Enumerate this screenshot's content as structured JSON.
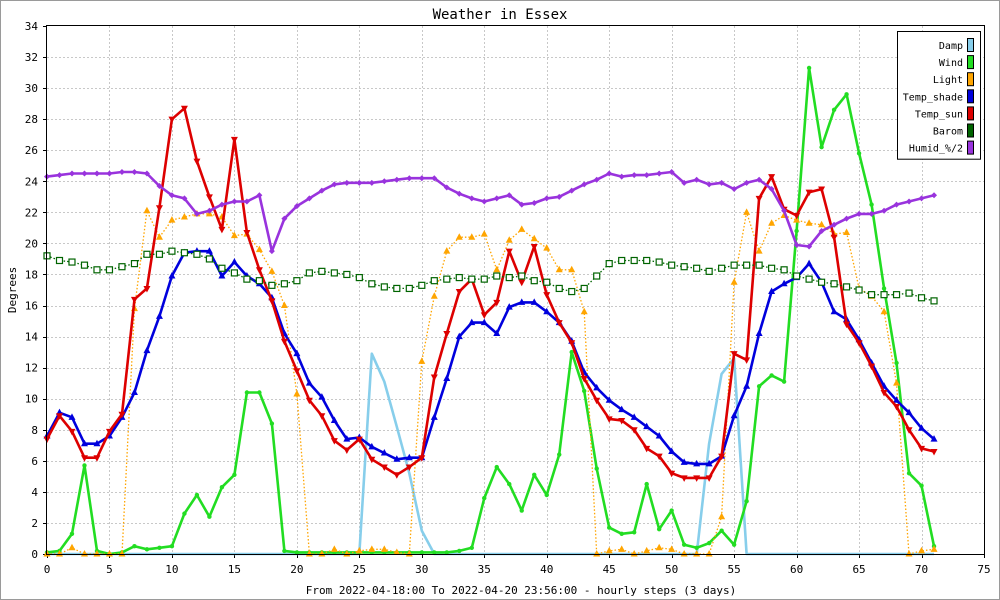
{
  "chart_data": {
    "type": "line",
    "title": "Weather in Essex",
    "xlabel": "From 2022-04-18:00 To 2022-04-20 23:56:00 - hourly steps (3 days)",
    "ylabel": "Degrees",
    "xlim": [
      0,
      75
    ],
    "ylim": [
      0,
      34
    ],
    "xticks": [
      0,
      5,
      10,
      15,
      20,
      25,
      30,
      35,
      40,
      45,
      50,
      55,
      60,
      65,
      70,
      75
    ],
    "yticks": [
      0,
      2,
      4,
      6,
      8,
      10,
      12,
      14,
      16,
      18,
      20,
      22,
      24,
      26,
      28,
      30,
      32,
      34
    ],
    "grid": true,
    "legend_position": "top-right",
    "x": [
      0,
      1,
      2,
      3,
      4,
      5,
      6,
      7,
      8,
      9,
      10,
      11,
      12,
      13,
      14,
      15,
      16,
      17,
      18,
      19,
      20,
      21,
      22,
      23,
      24,
      25,
      26,
      27,
      28,
      29,
      30,
      31,
      32,
      33,
      34,
      35,
      36,
      37,
      38,
      39,
      40,
      41,
      42,
      43,
      44,
      45,
      46,
      47,
      48,
      49,
      50,
      51,
      52,
      53,
      54,
      55,
      56,
      57,
      58,
      59,
      60,
      61,
      62,
      63,
      64,
      65,
      66,
      67,
      68,
      69,
      70,
      71
    ],
    "series": [
      {
        "name": "Damp",
        "color": "#87ceeb",
        "style": "solid",
        "marker": "none",
        "values": [
          0,
          0,
          0,
          0,
          0,
          0,
          0,
          0,
          0,
          0,
          0,
          0,
          0,
          0,
          0,
          0,
          0,
          0,
          0,
          0,
          0,
          0,
          0,
          0,
          0,
          0,
          12.9,
          11.1,
          8.2,
          5.2,
          1.5,
          0,
          0,
          0,
          0,
          0,
          0,
          0,
          0,
          0,
          0,
          0,
          0,
          0,
          0,
          0,
          0,
          0,
          0,
          0,
          0,
          0,
          0,
          7.1,
          11.6,
          12.6,
          0,
          0,
          0,
          0,
          0,
          0,
          0,
          0,
          0,
          0,
          0,
          0,
          0,
          0,
          0,
          0
        ]
      },
      {
        "name": "Wind",
        "color": "#22dd22",
        "style": "solid",
        "marker": "dot",
        "values": [
          0.1,
          0.2,
          1.3,
          5.7,
          0.2,
          0,
          0.1,
          0.5,
          0.3,
          0.4,
          0.5,
          2.6,
          3.8,
          2.4,
          4.3,
          5.1,
          10.4,
          10.4,
          8.4,
          0.2,
          0.1,
          0.1,
          0.1,
          0.1,
          0.1,
          0.1,
          0.1,
          0.1,
          0.1,
          0.1,
          0.1,
          0.1,
          0.1,
          0.2,
          0.4,
          3.6,
          5.6,
          4.5,
          2.8,
          5.1,
          3.8,
          6.4,
          13,
          10.5,
          5.5,
          1.7,
          1.3,
          1.4,
          4.5,
          1.6,
          2.8,
          0.6,
          0.4,
          0.7,
          1.5,
          0.6,
          3.4,
          10.8,
          11.5,
          11.1,
          20.8,
          31.3,
          26.2,
          28.6,
          29.6,
          25.8,
          22.5,
          17.1,
          12.3,
          5.2,
          4.4,
          0.5
        ]
      },
      {
        "name": "Light",
        "color": "#ffa500",
        "style": "dotted",
        "marker": "triangle-up",
        "values": [
          0,
          0,
          0.4,
          0,
          0,
          0,
          0,
          15.8,
          22.1,
          20.4,
          21.5,
          21.7,
          21.9,
          21.9,
          21.7,
          20.5,
          20.6,
          19.6,
          18.2,
          16,
          10.3,
          0,
          0,
          0.3,
          0,
          0.2,
          0.3,
          0.3,
          0.1,
          0,
          12.4,
          16.6,
          19.5,
          20.4,
          20.4,
          20.6,
          18.3,
          20.2,
          20.9,
          20.3,
          19.7,
          18.3,
          18.3,
          15.6,
          0,
          0.2,
          0.3,
          0,
          0.2,
          0.4,
          0.3,
          0,
          0,
          0,
          2.4,
          17.5,
          22,
          19.5,
          21.3,
          21.8,
          21.5,
          21.3,
          21.2,
          20.6,
          20.7,
          17.1,
          16.6,
          15.6,
          11,
          0,
          0.2,
          0.3
        ]
      },
      {
        "name": "Temp_shade",
        "color": "#0000dd",
        "style": "solid",
        "marker": "triangle-up",
        "values": [
          7.6,
          9.1,
          8.8,
          7.1,
          7.1,
          7.6,
          8.8,
          10.4,
          13.1,
          15.3,
          17.9,
          19.4,
          19.5,
          19.5,
          17.9,
          18.8,
          17.9,
          17.4,
          16.5,
          14.2,
          12.9,
          11,
          10.1,
          8.6,
          7.4,
          7.5,
          6.9,
          6.5,
          6.1,
          6.2,
          6.2,
          8.8,
          11.3,
          14,
          14.9,
          14.9,
          14.2,
          15.9,
          16.2,
          16.2,
          15.6,
          14.9,
          13.7,
          11.7,
          10.7,
          9.9,
          9.3,
          8.8,
          8.2,
          7.6,
          6.6,
          5.9,
          5.8,
          5.8,
          6.3,
          8.9,
          10.8,
          14.2,
          16.9,
          17.4,
          17.8,
          18.7,
          17.5,
          15.6,
          15.1,
          13.8,
          12.3,
          10.8,
          9.9,
          9.1,
          8.1,
          7.4
        ]
      },
      {
        "name": "Temp_sun",
        "color": "#dd0000",
        "style": "solid",
        "marker": "triangle-down",
        "values": [
          7.4,
          8.9,
          7.9,
          6.2,
          6.2,
          7.9,
          9,
          16.4,
          17.1,
          22.3,
          28,
          28.7,
          25.3,
          23,
          20.9,
          26.7,
          20.7,
          18.3,
          16.3,
          13.7,
          11.8,
          9.9,
          8.9,
          7.3,
          6.7,
          7.4,
          6.1,
          5.6,
          5.1,
          5.6,
          6.2,
          11.4,
          14.2,
          16.9,
          17.7,
          15.4,
          16.2,
          19.5,
          17.5,
          19.8,
          16.7,
          14.9,
          13.6,
          11.3,
          9.9,
          8.7,
          8.6,
          8,
          6.8,
          6.3,
          5.2,
          4.9,
          4.9,
          4.9,
          6.3,
          12.9,
          12.5,
          22.9,
          24.3,
          22.2,
          21.8,
          23.3,
          23.5,
          20.4,
          14.8,
          13.6,
          12.1,
          10.4,
          9.5,
          8,
          6.8,
          6.6
        ]
      },
      {
        "name": "Barom",
        "color": "#006400",
        "style": "dotted",
        "marker": "square",
        "values": [
          19.2,
          18.9,
          18.8,
          18.6,
          18.3,
          18.3,
          18.5,
          18.7,
          19.3,
          19.3,
          19.5,
          19.4,
          19.3,
          19,
          18.4,
          18.1,
          17.7,
          17.6,
          17.3,
          17.4,
          17.6,
          18.1,
          18.2,
          18.1,
          18,
          17.8,
          17.4,
          17.2,
          17.1,
          17.1,
          17.3,
          17.6,
          17.7,
          17.8,
          17.7,
          17.7,
          17.9,
          17.8,
          17.9,
          17.6,
          17.5,
          17.1,
          16.9,
          17.1,
          17.9,
          18.7,
          18.9,
          18.9,
          18.9,
          18.8,
          18.6,
          18.5,
          18.4,
          18.2,
          18.4,
          18.6,
          18.6,
          18.6,
          18.4,
          18.3,
          17.9,
          17.7,
          17.5,
          17.4,
          17.2,
          17,
          16.7,
          16.7,
          16.7,
          16.8,
          16.5,
          16.3
        ]
      },
      {
        "name": "Humid_%/2",
        "color": "#9933dd",
        "style": "solid",
        "marker": "diamond",
        "values": [
          24.3,
          24.4,
          24.5,
          24.5,
          24.5,
          24.5,
          24.6,
          24.6,
          24.5,
          23.7,
          23.1,
          22.9,
          21.9,
          22.1,
          22.5,
          22.7,
          22.7,
          23.1,
          19.5,
          21.6,
          22.4,
          22.9,
          23.4,
          23.8,
          23.9,
          23.9,
          23.9,
          24,
          24.1,
          24.2,
          24.2,
          24.2,
          23.6,
          23.2,
          22.9,
          22.7,
          22.9,
          23.1,
          22.5,
          22.6,
          22.9,
          23,
          23.4,
          23.8,
          24.1,
          24.5,
          24.3,
          24.4,
          24.4,
          24.5,
          24.6,
          23.9,
          24.1,
          23.8,
          23.9,
          23.5,
          23.9,
          24.1,
          23.5,
          22.1,
          19.9,
          19.8,
          20.8,
          21.2,
          21.6,
          21.9,
          21.9,
          22.1,
          22.5,
          22.7,
          22.9,
          23.1
        ]
      }
    ]
  }
}
